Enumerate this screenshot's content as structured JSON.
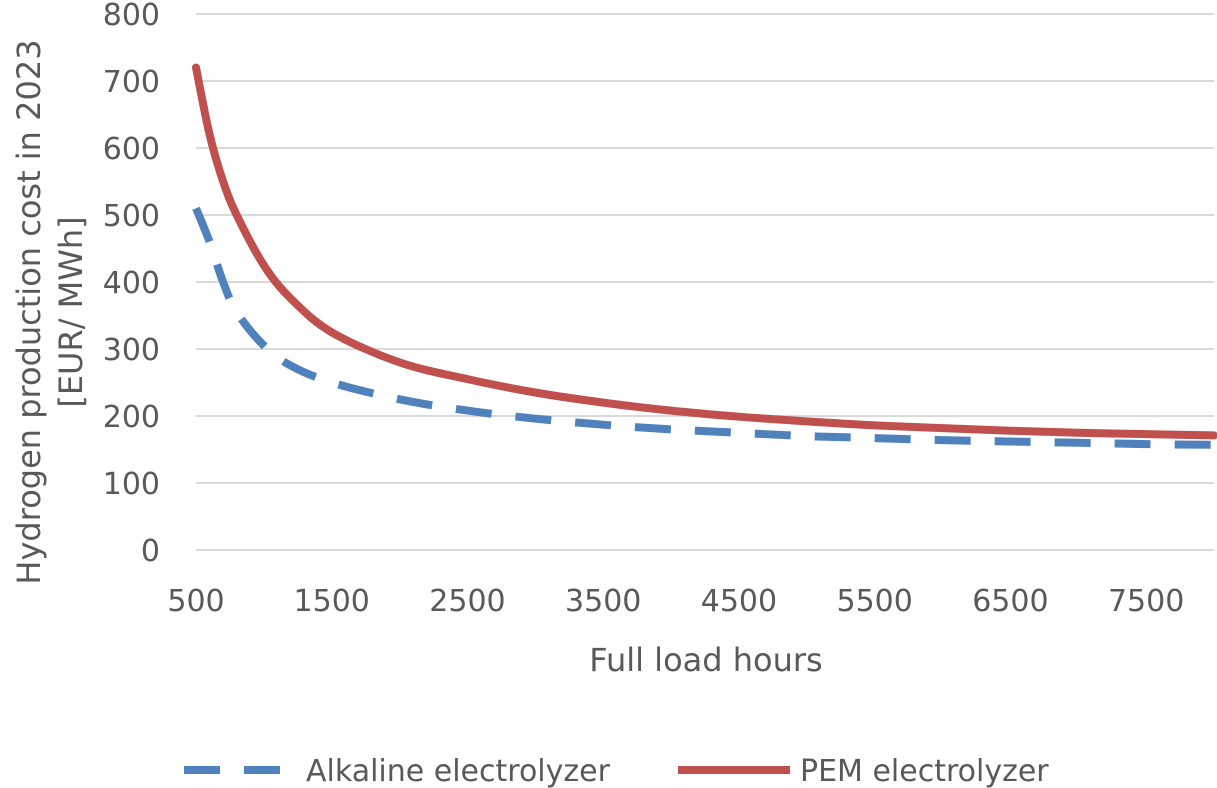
{
  "chart_data": {
    "type": "line",
    "title": "",
    "xlabel": "Full load hours",
    "ylabel": [
      "Hydrogen production cost in 2023",
      "[EUR/ MWh]"
    ],
    "xlim": [
      500,
      8000
    ],
    "ylim": [
      0,
      800
    ],
    "x_ticks": [
      "500",
      "1500",
      "2500",
      "3500",
      "4500",
      "5500",
      "6500",
      "7500"
    ],
    "y_ticks": [
      "0",
      "100",
      "200",
      "300",
      "400",
      "500",
      "600",
      "700",
      "800"
    ],
    "grid": "horizontal",
    "legend_position": "bottom",
    "series": [
      {
        "name": "Alkaline electrolyzer",
        "color": "#4f81bd",
        "style": "dashed",
        "x": [
          500,
          600,
          700,
          800,
          1000,
          1200,
          1500,
          2000,
          2500,
          3000,
          3500,
          4000,
          4500,
          5000,
          5500,
          6000,
          6500,
          7000,
          7500,
          8000
        ],
        "values": [
          510,
          460,
          400,
          355,
          305,
          275,
          250,
          225,
          208,
          196,
          187,
          180,
          175,
          170,
          167,
          164,
          162,
          160,
          158,
          157
        ]
      },
      {
        "name": "PEM electrolyzer",
        "color": "#c0504d",
        "style": "solid",
        "x": [
          500,
          600,
          700,
          800,
          1000,
          1200,
          1500,
          2000,
          2500,
          3000,
          3500,
          4000,
          4500,
          5000,
          5500,
          6000,
          6500,
          7000,
          7500,
          8000
        ],
        "values": [
          720,
          620,
          550,
          500,
          425,
          375,
          325,
          280,
          255,
          235,
          220,
          208,
          199,
          192,
          186,
          182,
          178,
          175,
          173,
          171
        ]
      }
    ]
  }
}
